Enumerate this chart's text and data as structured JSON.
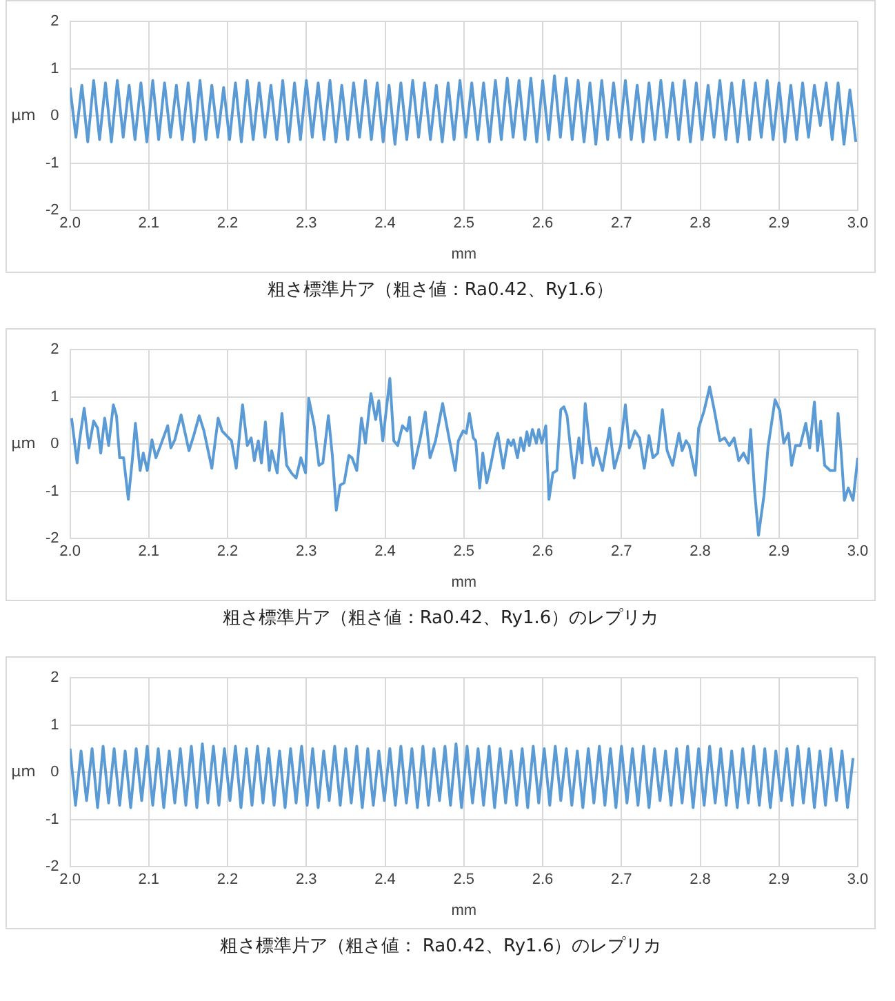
{
  "chart_data": [
    {
      "type": "line",
      "title": "粗さ標準片ア（粗さ値：Ra0.42、Ry1.6）",
      "xlabel": "mm",
      "ylabel": "μm",
      "xlim": [
        2,
        3
      ],
      "ylim": [
        -2,
        2
      ],
      "grid": true,
      "marker": "none",
      "line_style": "solid",
      "xticks": [
        {
          "value": 2,
          "label": "2.0"
        },
        {
          "value": 2.1,
          "label": "2.1"
        },
        {
          "value": 2.2,
          "label": "2.2"
        },
        {
          "value": 2.3,
          "label": "2.3"
        },
        {
          "value": 2.4,
          "label": "2.4"
        },
        {
          "value": 2.5,
          "label": "2.5"
        },
        {
          "value": 2.6,
          "label": "2.6"
        },
        {
          "value": 2.7,
          "label": "2.7"
        },
        {
          "value": 2.8,
          "label": "2.8"
        },
        {
          "value": 2.9,
          "label": "2.9"
        },
        {
          "value": 3,
          "label": "3.0"
        }
      ],
      "yticks": [
        -2,
        -1,
        0,
        1,
        2
      ],
      "x": [
        2,
        2.0075,
        2.015,
        2.0225,
        2.03,
        2.0375,
        2.045,
        2.0525,
        2.06,
        2.0675,
        2.075,
        2.0825,
        2.09,
        2.0975,
        2.105,
        2.1125,
        2.12,
        2.1275,
        2.135,
        2.1425,
        2.15,
        2.1575,
        2.165,
        2.1725,
        2.18,
        2.1875,
        2.195,
        2.2025,
        2.21,
        2.2175,
        2.225,
        2.2325,
        2.24,
        2.2475,
        2.255,
        2.2625,
        2.27,
        2.2775,
        2.285,
        2.2925,
        2.3,
        2.3075,
        2.315,
        2.3225,
        2.33,
        2.3375,
        2.345,
        2.3525,
        2.36,
        2.3675,
        2.375,
        2.3825,
        2.39,
        2.3975,
        2.405,
        2.4125,
        2.42,
        2.4275,
        2.435,
        2.4425,
        2.45,
        2.4575,
        2.465,
        2.4725,
        2.48,
        2.4875,
        2.495,
        2.5025,
        2.51,
        2.5175,
        2.525,
        2.5325,
        2.54,
        2.5475,
        2.555,
        2.5625,
        2.57,
        2.5775,
        2.585,
        2.5925,
        2.6,
        2.6075,
        2.615,
        2.6225,
        2.63,
        2.6375,
        2.645,
        2.6525,
        2.66,
        2.6675,
        2.675,
        2.6825,
        2.69,
        2.6975,
        2.705,
        2.7125,
        2.72,
        2.7275,
        2.735,
        2.7425,
        2.75,
        2.7575,
        2.765,
        2.7725,
        2.78,
        2.7875,
        2.795,
        2.8025,
        2.81,
        2.8175,
        2.825,
        2.8325,
        2.84,
        2.8475,
        2.855,
        2.8625,
        2.87,
        2.8775,
        2.885,
        2.8925,
        2.9,
        2.9075,
        2.915,
        2.9225,
        2.93,
        2.9375,
        2.945,
        2.9525,
        2.96,
        2.9675,
        2.975,
        2.9825,
        2.99,
        2.9975
      ],
      "series": [
        {
          "color": "#5b9bd5",
          "values": [
            0.6,
            -0.45,
            0.65,
            -0.55,
            0.75,
            -0.5,
            0.7,
            -0.55,
            0.75,
            -0.45,
            0.65,
            -0.5,
            0.7,
            -0.55,
            0.75,
            -0.5,
            0.7,
            -0.45,
            0.65,
            -0.5,
            0.7,
            -0.55,
            0.75,
            -0.5,
            0.65,
            -0.45,
            0.6,
            -0.5,
            0.7,
            -0.55,
            0.75,
            -0.5,
            0.7,
            -0.45,
            0.65,
            -0.5,
            0.75,
            -0.55,
            0.7,
            -0.5,
            0.75,
            -0.45,
            0.7,
            -0.5,
            0.75,
            -0.55,
            0.65,
            -0.5,
            0.7,
            -0.45,
            0.75,
            -0.5,
            0.7,
            -0.55,
            0.65,
            -0.6,
            0.7,
            -0.5,
            0.75,
            -0.45,
            0.7,
            -0.5,
            0.65,
            -0.55,
            0.7,
            -0.5,
            0.75,
            -0.45,
            0.7,
            -0.5,
            0.7,
            -0.55,
            0.75,
            -0.5,
            0.8,
            -0.45,
            0.75,
            -0.5,
            0.8,
            -0.55,
            0.75,
            -0.5,
            0.85,
            -0.45,
            0.8,
            -0.5,
            0.75,
            -0.55,
            0.7,
            -0.6,
            0.75,
            -0.5,
            0.7,
            -0.45,
            0.75,
            -0.5,
            0.65,
            -0.55,
            0.7,
            -0.5,
            0.75,
            -0.45,
            0.7,
            -0.5,
            0.75,
            -0.55,
            0.7,
            -0.5,
            0.65,
            -0.45,
            0.75,
            -0.5,
            0.7,
            -0.55,
            0.75,
            -0.5,
            0.7,
            -0.45,
            0.75,
            -0.5,
            0.7,
            -0.55,
            0.65,
            -0.5,
            0.7,
            -0.45,
            0.65,
            -0.2,
            0.7,
            -0.5,
            0.7,
            -0.6,
            0.55,
            -0.55
          ]
        }
      ]
    },
    {
      "type": "line",
      "title": "粗さ標準片ア（粗さ値：Ra0.42、Ry1.6）のレプリカ",
      "xlabel": "mm",
      "ylabel": "μm",
      "xlim": [
        2,
        3
      ],
      "ylim": [
        -2,
        2
      ],
      "grid": true,
      "marker": "none",
      "line_style": "solid",
      "xticks": [
        {
          "value": 2,
          "label": "2.0"
        },
        {
          "value": 2.1,
          "label": "2.1"
        },
        {
          "value": 2.2,
          "label": "2.2"
        },
        {
          "value": 2.3,
          "label": "2.3"
        },
        {
          "value": 2.4,
          "label": "2.4"
        },
        {
          "value": 2.5,
          "label": "2.5"
        },
        {
          "value": 2.6,
          "label": "2.6"
        },
        {
          "value": 2.7,
          "label": "2.7"
        },
        {
          "value": 2.8,
          "label": "2.8"
        },
        {
          "value": 2.9,
          "label": "2.9"
        },
        {
          "value": 3,
          "label": "3.0"
        }
      ],
      "yticks": [
        -2,
        -1,
        0,
        1,
        2
      ],
      "x": [
        2.002,
        2.009,
        2.012,
        2.018,
        2.024,
        2.03,
        2.035,
        2.039,
        2.044,
        2.049,
        2.055,
        2.059,
        2.063,
        2.068,
        2.074,
        2.079,
        2.083,
        2.089,
        2.093,
        2.098,
        2.104,
        2.109,
        2.116,
        2.124,
        2.128,
        2.133,
        2.141,
        2.151,
        2.157,
        2.164,
        2.17,
        2.18,
        2.188,
        2.193,
        2.205,
        2.211,
        2.219,
        2.225,
        2.23,
        2.234,
        2.239,
        2.243,
        2.248,
        2.253,
        2.256,
        2.263,
        2.269,
        2.275,
        2.281,
        2.287,
        2.293,
        2.299,
        2.303,
        2.31,
        2.316,
        2.321,
        2.328,
        2.333,
        2.338,
        2.343,
        2.348,
        2.354,
        2.358,
        2.364,
        2.37,
        2.375,
        2.382,
        2.388,
        2.392,
        2.397,
        2.406,
        2.411,
        2.416,
        2.422,
        2.428,
        2.431,
        2.436,
        2.444,
        2.451,
        2.457,
        2.464,
        2.473,
        2.48,
        2.489,
        2.493,
        2.499,
        2.503,
        2.507,
        2.512,
        2.515,
        2.52,
        2.524,
        2.529,
        2.534,
        2.54,
        2.543,
        2.55,
        2.556,
        2.56,
        2.563,
        2.568,
        2.572,
        2.576,
        2.58,
        2.583,
        2.587,
        2.592,
        2.595,
        2.599,
        2.604,
        2.608,
        2.613,
        2.618,
        2.623,
        2.627,
        2.631,
        2.635,
        2.64,
        2.646,
        2.65,
        2.654,
        2.659,
        2.664,
        2.668,
        2.676,
        2.685,
        2.691,
        2.699,
        2.705,
        2.71,
        2.717,
        2.723,
        2.729,
        2.735,
        2.74,
        2.746,
        2.752,
        2.758,
        2.765,
        2.773,
        2.777,
        2.782,
        2.786,
        2.794,
        2.798,
        2.805,
        2.812,
        2.818,
        2.825,
        2.831,
        2.837,
        2.843,
        2.849,
        2.855,
        2.861,
        2.864,
        2.869,
        2.874,
        2.881,
        2.886,
        2.891,
        2.895,
        2.901,
        2.906,
        2.912,
        2.916,
        2.921,
        2.927,
        2.934,
        2.939,
        2.945,
        2.949,
        2.953,
        2.958,
        2.965,
        2.971,
        2.975,
        2.979,
        2.983,
        2.988,
        2.994,
        3
      ],
      "series": [
        {
          "color": "#5b9bd5",
          "values": [
            0.55,
            -0.4,
            0.07,
            0.76,
            -0.08,
            0.49,
            0.34,
            -0.19,
            0.55,
            -0.03,
            0.83,
            0.6,
            -0.29,
            -0.29,
            -1.17,
            -0.35,
            0.44,
            -0.56,
            -0.19,
            -0.56,
            0.09,
            -0.29,
            0.02,
            0.39,
            -0.08,
            0.09,
            0.62,
            -0.14,
            0.18,
            0.6,
            0.28,
            -0.51,
            0.55,
            0.28,
            0.07,
            -0.51,
            0.83,
            -0.03,
            0.13,
            -0.35,
            0.07,
            -0.4,
            0.47,
            -0.56,
            -0.14,
            -0.61,
            0.65,
            -0.45,
            -0.61,
            -0.72,
            -0.29,
            -0.61,
            0.97,
            0.39,
            -0.45,
            -0.4,
            0.6,
            -0.24,
            -1.4,
            -0.87,
            -0.82,
            -0.24,
            -0.29,
            -0.56,
            0.55,
            0.02,
            1.07,
            0.52,
            0.92,
            0.07,
            1.39,
            0.07,
            -0.03,
            0.39,
            0.28,
            0.57,
            -0.51,
            0.07,
            0.68,
            -0.29,
            0.07,
            0.86,
            0.23,
            -0.56,
            0.07,
            0.28,
            0.23,
            0.65,
            0.13,
            0.07,
            -0.93,
            -0.19,
            -0.82,
            -0.45,
            0.07,
            0.23,
            -0.51,
            0.09,
            -0.03,
            0.09,
            -0.29,
            0.13,
            -0.14,
            0.26,
            -0.03,
            0.31,
            0.02,
            0.31,
            0.02,
            0.39,
            -1.17,
            -0.61,
            -0.56,
            0.73,
            0.79,
            0.6,
            -0.03,
            -0.72,
            0.13,
            -0.4,
            0.86,
            0.07,
            -0.45,
            -0.08,
            -0.56,
            0.34,
            -0.51,
            -0.03,
            0.83,
            -0.08,
            0.28,
            0.13,
            -0.51,
            0.18,
            -0.29,
            -0.19,
            0.73,
            -0.14,
            -0.45,
            0.23,
            -0.14,
            0.07,
            -0.03,
            -0.66,
            0.34,
            0.71,
            1.21,
            0.71,
            0.07,
            0.13,
            -0.03,
            0.13,
            -0.35,
            -0.19,
            -0.4,
            0.31,
            -0.98,
            -1.93,
            -1.08,
            -0.08,
            0.49,
            0.94,
            0.71,
            0.02,
            0.23,
            -0.45,
            -0.03,
            -0.03,
            0.44,
            -0.08,
            0.89,
            -0.14,
            0.49,
            -0.45,
            -0.56,
            -0.56,
            0.65,
            -0.19,
            -1.19,
            -0.93,
            -1.19,
            -0.29
          ]
        }
      ]
    },
    {
      "type": "line",
      "title": "粗さ標準片ア（粗さ値： Ra0.42、Ry1.6）のレプリカ",
      "xlabel": "mm",
      "ylabel": "μm",
      "xlim": [
        2,
        3
      ],
      "ylim": [
        -2,
        2
      ],
      "grid": true,
      "marker": "none",
      "line_style": "solid",
      "xticks": [
        {
          "value": 2,
          "label": "2.0"
        },
        {
          "value": 2.1,
          "label": "2.1"
        },
        {
          "value": 2.2,
          "label": "2.2"
        },
        {
          "value": 2.3,
          "label": "2.3"
        },
        {
          "value": 2.4,
          "label": "2.4"
        },
        {
          "value": 2.5,
          "label": "2.5"
        },
        {
          "value": 2.6,
          "label": "2.6"
        },
        {
          "value": 2.7,
          "label": "2.7"
        },
        {
          "value": 2.8,
          "label": "2.8"
        },
        {
          "value": 2.9,
          "label": "2.9"
        },
        {
          "value": 3,
          "label": "3.0"
        }
      ],
      "yticks": [
        -2,
        -1,
        0,
        1,
        2
      ],
      "x": [
        2,
        2.007,
        2.014,
        2.021,
        2.028,
        2.035,
        2.042,
        2.049,
        2.056,
        2.063,
        2.07,
        2.077,
        2.084,
        2.091,
        2.098,
        2.105,
        2.112,
        2.119,
        2.126,
        2.133,
        2.14,
        2.147,
        2.154,
        2.161,
        2.168,
        2.175,
        2.182,
        2.189,
        2.196,
        2.203,
        2.21,
        2.217,
        2.224,
        2.231,
        2.238,
        2.245,
        2.252,
        2.259,
        2.266,
        2.273,
        2.28,
        2.287,
        2.294,
        2.301,
        2.308,
        2.315,
        2.322,
        2.329,
        2.336,
        2.343,
        2.35,
        2.357,
        2.364,
        2.371,
        2.378,
        2.385,
        2.392,
        2.399,
        2.406,
        2.413,
        2.42,
        2.427,
        2.434,
        2.441,
        2.448,
        2.455,
        2.462,
        2.469,
        2.476,
        2.483,
        2.49,
        2.497,
        2.504,
        2.511,
        2.518,
        2.525,
        2.532,
        2.539,
        2.546,
        2.553,
        2.56,
        2.567,
        2.574,
        2.581,
        2.588,
        2.595,
        2.602,
        2.609,
        2.616,
        2.623,
        2.63,
        2.637,
        2.644,
        2.651,
        2.658,
        2.665,
        2.672,
        2.679,
        2.686,
        2.693,
        2.7,
        2.707,
        2.714,
        2.721,
        2.728,
        2.735,
        2.742,
        2.749,
        2.756,
        2.763,
        2.77,
        2.777,
        2.784,
        2.791,
        2.798,
        2.805,
        2.812,
        2.819,
        2.826,
        2.833,
        2.84,
        2.847,
        2.854,
        2.861,
        2.868,
        2.875,
        2.882,
        2.889,
        2.896,
        2.903,
        2.91,
        2.917,
        2.924,
        2.931,
        2.938,
        2.945,
        2.952,
        2.959,
        2.966,
        2.973,
        2.98,
        2.987,
        2.994
      ],
      "series": [
        {
          "color": "#5b9bd5",
          "values": [
            0.5,
            -0.7,
            0.45,
            -0.6,
            0.5,
            -0.75,
            0.55,
            -0.65,
            0.5,
            -0.7,
            0.45,
            -0.75,
            0.5,
            -0.6,
            0.55,
            -0.7,
            0.5,
            -0.75,
            0.45,
            -0.65,
            0.5,
            -0.7,
            0.55,
            -0.75,
            0.6,
            -0.65,
            0.55,
            -0.7,
            0.5,
            -0.6,
            0.55,
            -0.75,
            0.5,
            -0.7,
            0.55,
            -0.65,
            0.5,
            -0.7,
            0.45,
            -0.75,
            0.5,
            -0.65,
            0.55,
            -0.7,
            0.5,
            -0.75,
            0.45,
            -0.6,
            0.55,
            -0.7,
            0.5,
            -0.65,
            0.55,
            -0.75,
            0.5,
            -0.7,
            0.45,
            -0.6,
            0.5,
            -0.7,
            0.55,
            -0.65,
            0.5,
            -0.75,
            0.55,
            -0.7,
            0.5,
            -0.6,
            0.55,
            -0.7,
            0.6,
            -0.75,
            0.55,
            -0.65,
            0.5,
            -0.7,
            0.55,
            -0.75,
            0.5,
            -0.65,
            0.45,
            -0.7,
            0.5,
            -0.75,
            0.55,
            -0.65,
            0.5,
            -0.7,
            0.55,
            -0.6,
            0.5,
            -0.7,
            0.45,
            -0.75,
            0.5,
            -0.65,
            0.55,
            -0.7,
            0.5,
            -0.75,
            0.55,
            -0.65,
            0.5,
            -0.7,
            0.55,
            -0.75,
            0.5,
            -0.6,
            0.45,
            -0.7,
            0.5,
            -0.65,
            0.55,
            -0.75,
            0.5,
            -0.7,
            0.55,
            -0.65,
            0.5,
            -0.7,
            0.45,
            -0.75,
            0.5,
            -0.65,
            0.55,
            -0.7,
            0.5,
            -0.75,
            0.45,
            -0.6,
            0.5,
            -0.7,
            0.55,
            -0.65,
            0.5,
            -0.75,
            0.45,
            -0.7,
            0.5,
            -0.6,
            0.45,
            -0.75,
            0.3
          ]
        }
      ]
    }
  ]
}
